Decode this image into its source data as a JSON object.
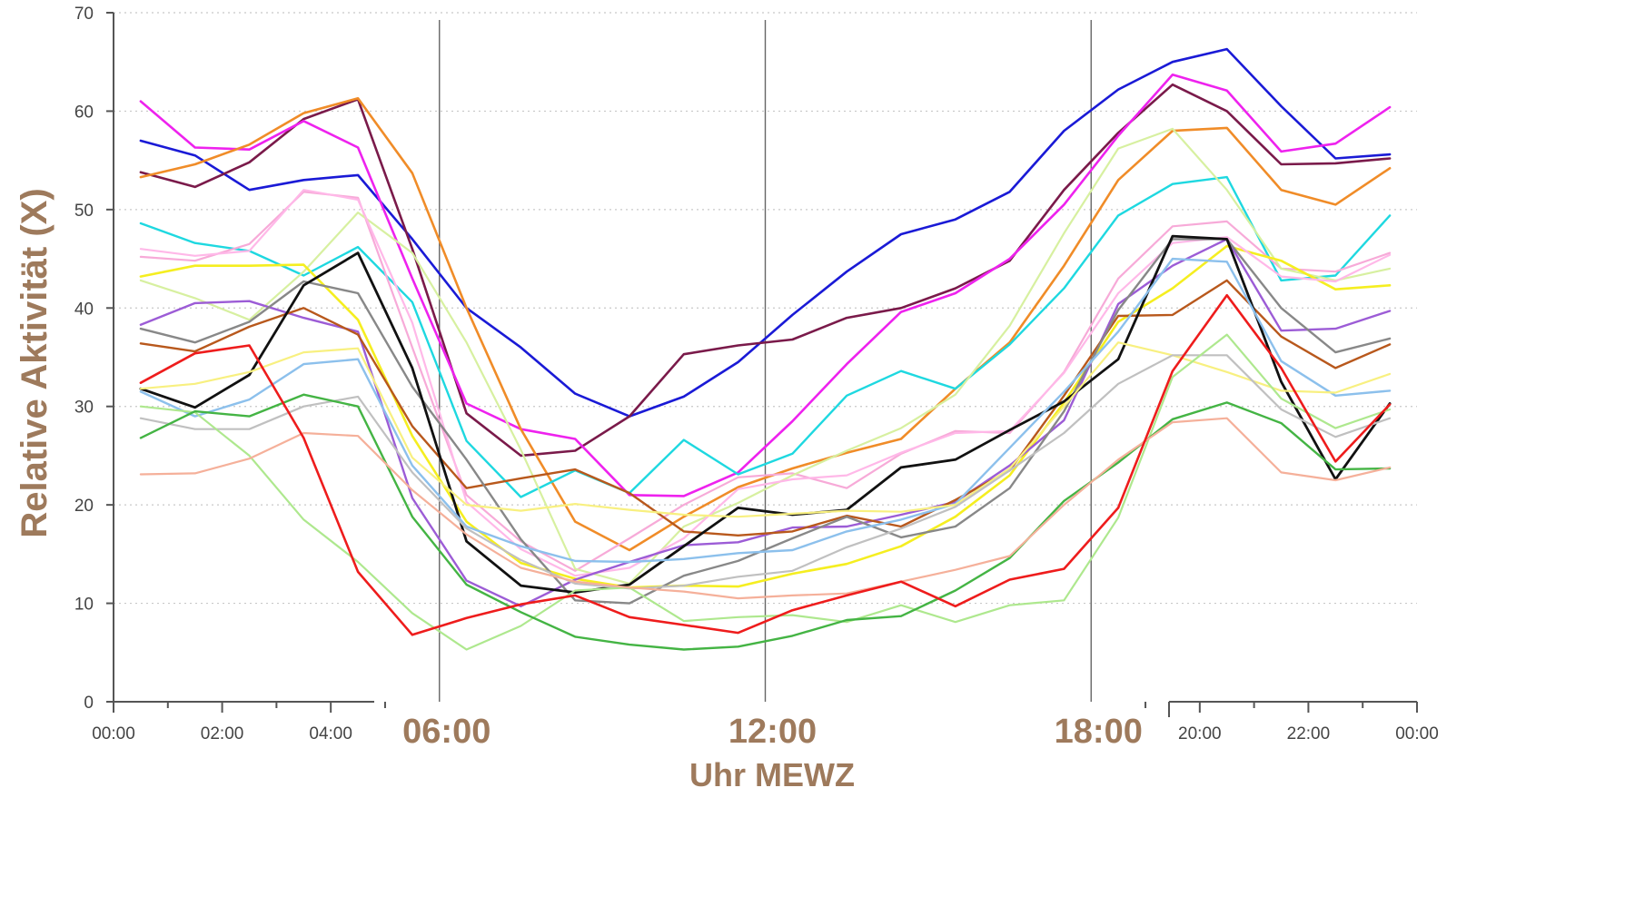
{
  "colors": {
    "axis_title": "#9e7a5c",
    "tick_text": "#444444",
    "marker_line": "#666666"
  },
  "chart_data": {
    "type": "line",
    "xlabel": "Uhr MEWZ",
    "ylabel": "Relative Aktivität (X)",
    "ylim": [
      0,
      70
    ],
    "xlim": [
      0,
      24
    ],
    "yticks": [
      "0",
      "10",
      "20",
      "30",
      "40",
      "50",
      "60",
      "70"
    ],
    "xticks_small": [
      {
        "label": "00:00",
        "x": 0
      },
      {
        "label": "02:00",
        "x": 2
      },
      {
        "label": "04:00",
        "x": 4
      },
      {
        "label": "20:00",
        "x": 20
      },
      {
        "label": "22:00",
        "x": 22
      },
      {
        "label": "00:00",
        "x": 24
      }
    ],
    "xticks_big": [
      {
        "label": "06:00",
        "x": 6
      },
      {
        "label": "12:00",
        "x": 12
      },
      {
        "label": "18:00",
        "x": 18
      }
    ],
    "vertical_markers": [
      6,
      12,
      18
    ],
    "grid": "horizontal dotted",
    "x": [
      0.5,
      1.5,
      2.5,
      3.5,
      4.5,
      5.5,
      6.5,
      7.5,
      8.5,
      9.5,
      10.5,
      11.5,
      12.5,
      13.5,
      14.5,
      15.5,
      16.5,
      17.5,
      18.5,
      19.5,
      20.5,
      21.5,
      22.5,
      23.5
    ],
    "series": [
      {
        "color": "#1a1ad6",
        "width": 2.6,
        "values": [
          57.0,
          55.5,
          52.0,
          53.0,
          53.5,
          47.0,
          40.0,
          36.0,
          31.3,
          29.0,
          31.0,
          34.5,
          39.3,
          43.7,
          47.5,
          49.0,
          51.8,
          58.0,
          62.2,
          65.0,
          66.3,
          60.5,
          55.2,
          55.6
        ]
      },
      {
        "color": "#7a1a4a",
        "width": 2.6,
        "values": [
          53.8,
          52.3,
          54.8,
          59.2,
          61.2,
          46.0,
          29.3,
          25.0,
          25.5,
          29.0,
          35.3,
          36.2,
          36.8,
          39.0,
          40.0,
          42.0,
          44.8,
          52.0,
          57.8,
          62.7,
          60.0,
          54.6,
          54.7,
          55.2
        ]
      },
      {
        "color": "#ee22ee",
        "width": 2.6,
        "values": [
          61.0,
          56.3,
          56.1,
          59.0,
          56.3,
          43.0,
          30.3,
          27.7,
          26.7,
          21.0,
          20.9,
          23.3,
          28.5,
          34.3,
          39.6,
          41.5,
          45.0,
          50.5,
          57.5,
          63.7,
          62.1,
          55.9,
          56.7,
          60.4
        ]
      },
      {
        "color": "#f08c28",
        "width": 2.6,
        "values": [
          53.3,
          54.6,
          56.6,
          59.8,
          61.3,
          53.7,
          40.0,
          27.7,
          18.3,
          15.4,
          18.8,
          21.8,
          23.7,
          25.3,
          26.7,
          31.8,
          36.5,
          44.3,
          53.0,
          58.0,
          58.3,
          52.0,
          50.5,
          54.2
        ]
      },
      {
        "color": "#1ed8e0",
        "width": 2.4,
        "values": [
          48.6,
          46.6,
          45.8,
          43.3,
          46.2,
          40.6,
          26.5,
          20.8,
          23.5,
          21.2,
          26.6,
          23.1,
          25.2,
          31.1,
          33.6,
          31.8,
          36.3,
          42.0,
          49.4,
          52.6,
          53.3,
          42.8,
          43.3,
          49.4
        ]
      },
      {
        "color": "#f7aad8",
        "width": 2.2,
        "values": [
          45.2,
          44.8,
          46.5,
          51.8,
          51.2,
          36.0,
          21.0,
          16.3,
          13.3,
          16.6,
          20.0,
          22.8,
          23.2,
          21.7,
          25.2,
          27.5,
          27.3,
          33.5,
          43.0,
          48.3,
          48.8,
          44.0,
          43.7,
          45.6
        ]
      },
      {
        "color": "#d7f0a0",
        "width": 2.2,
        "values": [
          42.8,
          41.0,
          38.8,
          43.7,
          49.7,
          45.6,
          36.5,
          25.6,
          13.5,
          12.0,
          17.8,
          20.2,
          23.0,
          25.5,
          27.8,
          31.2,
          38.2,
          47.6,
          56.2,
          58.2,
          52.0,
          44.0,
          42.8,
          44.0
        ]
      },
      {
        "color": "#f5ee20",
        "width": 2.6,
        "values": [
          43.2,
          44.3,
          44.3,
          44.4,
          38.8,
          27.0,
          18.3,
          14.1,
          12.5,
          11.6,
          11.8,
          11.7,
          13.0,
          14.0,
          15.8,
          18.8,
          23.0,
          30.4,
          38.6,
          42.0,
          46.3,
          44.8,
          41.9,
          42.3
        ]
      },
      {
        "color": "#ffb8e8",
        "width": 2.2,
        "values": [
          46.0,
          45.3,
          45.8,
          52.0,
          51.0,
          38.5,
          20.3,
          15.5,
          12.8,
          13.6,
          16.6,
          21.6,
          22.6,
          23.0,
          25.3,
          27.3,
          27.5,
          33.4,
          41.5,
          46.6,
          47.2,
          43.2,
          42.7,
          45.4
        ]
      },
      {
        "color": "#9c5cd6",
        "width": 2.4,
        "values": [
          38.3,
          40.5,
          40.7,
          39.0,
          37.6,
          20.7,
          12.3,
          9.7,
          12.4,
          14.2,
          15.9,
          16.2,
          17.7,
          17.8,
          19.0,
          20.3,
          24.0,
          28.6,
          40.4,
          44.3,
          47.0,
          37.7,
          37.9,
          39.7
        ]
      },
      {
        "color": "#b8581c",
        "width": 2.4,
        "values": [
          36.4,
          35.6,
          38.1,
          40.0,
          37.3,
          28.0,
          21.7,
          22.7,
          23.6,
          21.2,
          17.3,
          16.9,
          17.3,
          18.9,
          17.8,
          20.5,
          23.5,
          31.1,
          39.2,
          39.3,
          42.8,
          37.1,
          33.9,
          36.3
        ]
      },
      {
        "color": "#888888",
        "width": 2.4,
        "values": [
          37.9,
          36.5,
          38.6,
          42.7,
          41.5,
          32.0,
          24.6,
          16.5,
          10.3,
          10.0,
          12.8,
          14.3,
          16.6,
          18.8,
          16.7,
          17.8,
          21.7,
          29.5,
          39.8,
          47.0,
          47.0,
          40.0,
          35.5,
          36.9
        ]
      },
      {
        "color": "#111111",
        "width": 2.8,
        "values": [
          31.8,
          29.9,
          33.2,
          42.3,
          45.6,
          33.9,
          16.3,
          11.8,
          11.1,
          11.9,
          15.8,
          19.7,
          19.0,
          19.5,
          23.8,
          24.6,
          27.6,
          30.5,
          34.8,
          47.3,
          47.0,
          32.5,
          22.6,
          30.3
        ]
      },
      {
        "color": "#8cc0ec",
        "width": 2.4,
        "values": [
          31.5,
          29.0,
          30.7,
          34.3,
          34.8,
          24.0,
          17.8,
          15.8,
          14.3,
          14.2,
          14.5,
          15.1,
          15.4,
          17.3,
          18.5,
          20.1,
          25.8,
          31.5,
          37.6,
          45.0,
          44.7,
          34.6,
          31.1,
          31.6
        ]
      },
      {
        "color": "#f8f080",
        "width": 2.2,
        "values": [
          31.8,
          32.3,
          33.5,
          35.5,
          35.9,
          24.8,
          20.0,
          19.4,
          20.1,
          19.5,
          19.0,
          18.8,
          19.1,
          19.4,
          19.3,
          20.0,
          23.7,
          30.0,
          36.5,
          35.2,
          33.5,
          31.6,
          31.4,
          33.3
        ]
      },
      {
        "color": "#c0c0c0",
        "width": 2.2,
        "values": [
          28.8,
          27.7,
          27.7,
          30.0,
          31.0,
          23.3,
          17.6,
          14.4,
          12.0,
          11.5,
          11.8,
          12.7,
          13.3,
          15.7,
          17.6,
          19.8,
          23.5,
          27.3,
          32.3,
          35.2,
          35.2,
          29.7,
          26.9,
          28.8
        ]
      },
      {
        "color": "#aee88e",
        "width": 2.2,
        "values": [
          30.0,
          29.4,
          25.0,
          18.5,
          14.2,
          9.0,
          5.3,
          7.7,
          11.3,
          11.6,
          8.2,
          8.6,
          8.8,
          8.1,
          9.8,
          8.1,
          9.8,
          10.3,
          18.7,
          33.0,
          37.3,
          30.8,
          27.8,
          29.7
        ]
      },
      {
        "color": "#44b444",
        "width": 2.4,
        "values": [
          26.8,
          29.5,
          29.0,
          31.2,
          30.0,
          18.8,
          11.9,
          9.1,
          6.6,
          5.8,
          5.3,
          5.6,
          6.7,
          8.3,
          8.7,
          11.3,
          14.6,
          20.4,
          24.3,
          28.7,
          30.4,
          28.3,
          23.6,
          23.7
        ]
      },
      {
        "color": "#f5b09a",
        "width": 2.2,
        "values": [
          23.1,
          23.2,
          24.7,
          27.3,
          27.0,
          21.5,
          17.0,
          13.6,
          12.2,
          11.6,
          11.2,
          10.5,
          10.8,
          11.0,
          12.2,
          13.4,
          14.8,
          20.0,
          24.6,
          28.4,
          28.8,
          23.3,
          22.5,
          23.8
        ]
      },
      {
        "color": "#ee1c1c",
        "width": 2.6,
        "values": [
          32.4,
          35.4,
          36.2,
          26.8,
          13.2,
          6.8,
          8.5,
          9.9,
          10.8,
          8.6,
          7.8,
          7.0,
          9.3,
          10.8,
          12.2,
          9.7,
          12.4,
          13.5,
          19.7,
          33.6,
          41.3,
          33.9,
          24.4,
          30.2
        ]
      }
    ]
  }
}
